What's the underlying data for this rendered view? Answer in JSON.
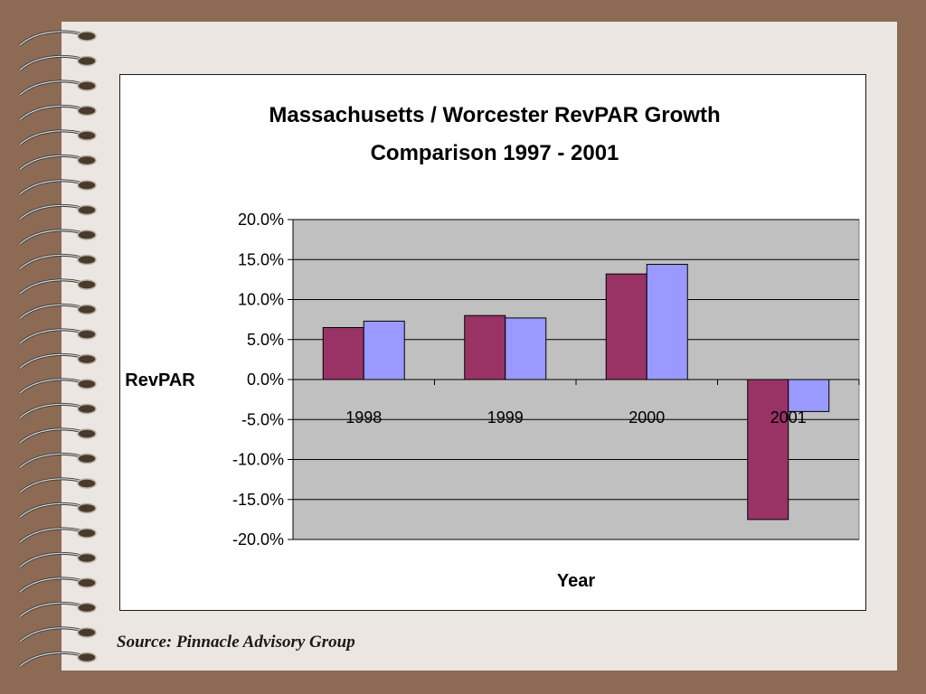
{
  "slide": {
    "source_note": "Source: Pinnacle Advisory Group",
    "colors": {
      "background": "#8c6a54",
      "paper": "#ece6e2",
      "plot_area": "#c0c0c0"
    }
  },
  "chart_data": {
    "type": "bar",
    "title_lines": [
      "Massachusetts / Worcester RevPAR Growth",
      "Comparison  1997 - 2001"
    ],
    "xlabel": "Year",
    "ylabel": "RevPAR",
    "categories": [
      "1998",
      "1999",
      "2000",
      "2001"
    ],
    "series": [
      {
        "color": "#993366",
        "values": [
          6.5,
          8.0,
          13.2,
          -17.5
        ]
      },
      {
        "color": "#9999ff",
        "values": [
          7.3,
          7.7,
          14.4,
          -4.0
        ]
      }
    ],
    "ylim": [
      -20,
      20
    ],
    "yticks": [
      20,
      15,
      10,
      5,
      0,
      -5,
      -10,
      -15,
      -20
    ],
    "ytick_labels": [
      "20.0%",
      "15.0%",
      "10.0%",
      "5.0%",
      "0.0%",
      "-5.0%",
      "-10.0%",
      "-15.0%",
      "-20.0%"
    ],
    "grid": true,
    "legend": "none"
  }
}
